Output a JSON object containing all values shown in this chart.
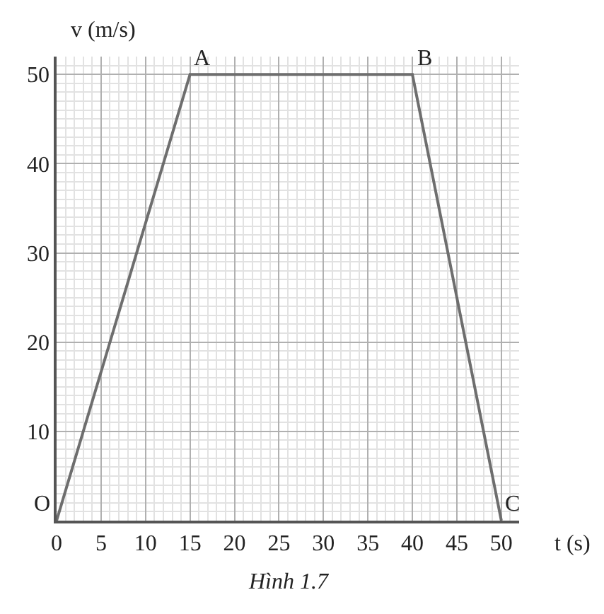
{
  "chart_data": {
    "type": "line",
    "xlabel": "t (s)",
    "ylabel": "v (m/s)",
    "x": [
      0,
      15,
      40,
      50
    ],
    "series": [
      {
        "color": "#6e6e6e",
        "values": [
          0,
          50,
          50,
          0
        ]
      }
    ],
    "xlim": [
      0,
      52
    ],
    "ylim": [
      0,
      52
    ],
    "xticks": [
      0,
      5,
      10,
      15,
      20,
      25,
      30,
      35,
      40,
      45,
      50
    ],
    "yticks": [
      10,
      20,
      30,
      40,
      50
    ],
    "grid": true,
    "marker": "none",
    "line_style": "solid",
    "annotations": [
      {
        "text": "O",
        "x": 0,
        "y": 0
      },
      {
        "text": "A",
        "x": 15,
        "y": 50
      },
      {
        "text": "B",
        "x": 40,
        "y": 50
      },
      {
        "text": "C",
        "x": 50,
        "y": 0
      },
      "Hình 1.7"
    ]
  }
}
